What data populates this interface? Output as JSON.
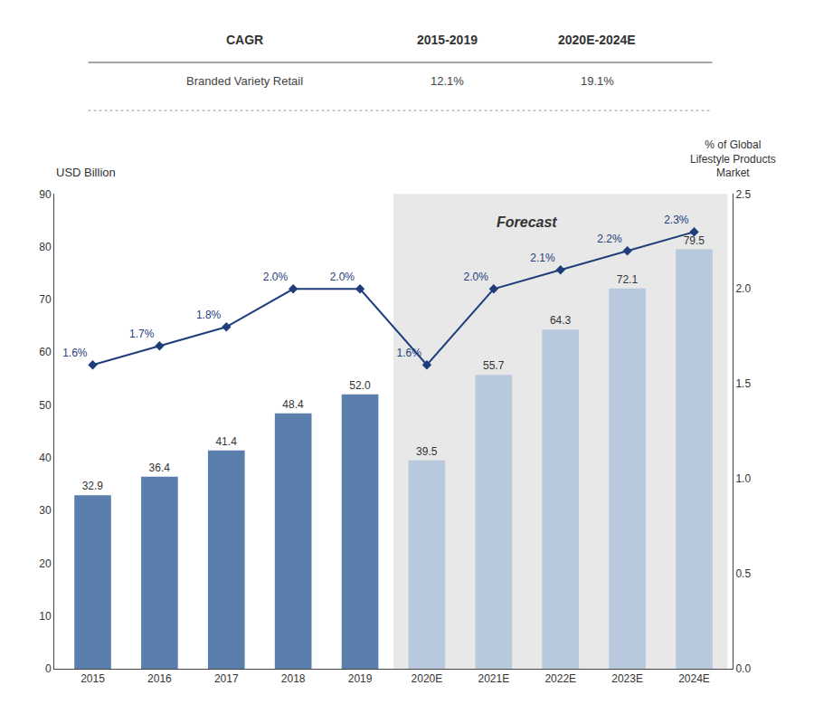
{
  "chart_data": {
    "type": "bar",
    "categories": [
      "2015",
      "2016",
      "2017",
      "2018",
      "2019",
      "2020E",
      "2021E",
      "2022E",
      "2023E",
      "2024E"
    ],
    "series": [
      {
        "type": "bar",
        "values": [
          32.9,
          36.4,
          41.4,
          48.4,
          52.0,
          39.5,
          55.7,
          64.3,
          72.1,
          79.5
        ],
        "value_labels": [
          "32.9",
          "36.4",
          "41.4",
          "48.4",
          "52.0",
          "39.5",
          "55.7",
          "64.3",
          "72.1",
          "79.5"
        ],
        "colors": [
          "#5b7fad",
          "#5b7fad",
          "#5b7fad",
          "#5b7fad",
          "#5b7fad",
          "#b8c9dd",
          "#b8c9dd",
          "#b8c9dd",
          "#b8c9dd",
          "#b8c9dd"
        ],
        "data_labels": true
      },
      {
        "type": "line",
        "axis": "y2",
        "values": [
          1.6,
          1.7,
          1.8,
          2.0,
          2.0,
          1.6,
          2.0,
          2.1,
          2.2,
          2.3
        ],
        "value_labels": [
          "1.6%",
          "1.7%",
          "1.8%",
          "2.0%",
          "2.0%",
          "1.6%",
          "2.0%",
          "2.1%",
          "2.2%",
          "2.3%"
        ],
        "color": "#1f3d7a",
        "marker": "diamond",
        "line_style": "solid",
        "data_labels": true
      }
    ],
    "ylabel": "USD Billion",
    "y2label": "% of Global\nLifestyle Products\nMarket",
    "ylim": [
      0,
      90
    ],
    "yticks": [
      0,
      10,
      20,
      30,
      40,
      50,
      60,
      70,
      80,
      90
    ],
    "y2lim": [
      0,
      2.5
    ],
    "y2ticks": [
      {
        "value": 0,
        "label": "0.0"
      },
      0.5,
      {
        "value": 1,
        "label": "1.0"
      },
      1.5,
      {
        "value": 2,
        "label": "2.0"
      },
      2.5
    ],
    "grid": false,
    "forecast": {
      "label": "Forecast",
      "start": "2020E",
      "color": "#e8e8e8"
    },
    "table": {
      "columns": [
        "CAGR",
        "2015-2019",
        "2020E-2024E"
      ],
      "rows": [
        [
          "Branded Variety Retail",
          "12.1%",
          "19.1%"
        ]
      ]
    }
  }
}
